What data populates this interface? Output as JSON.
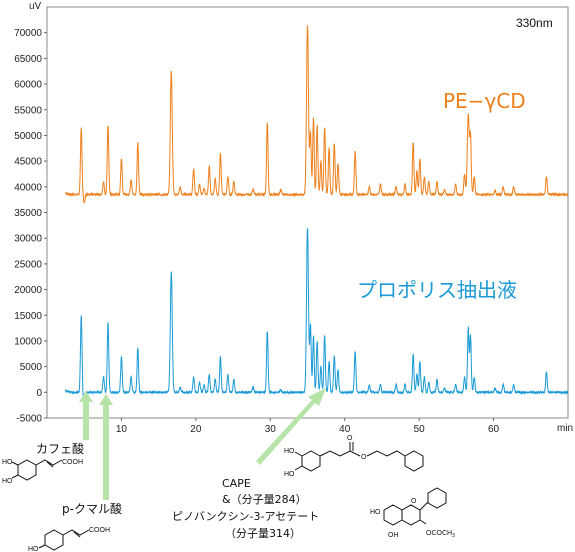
{
  "chart_data": {
    "type": "line",
    "y_unit": "uV",
    "x_unit": "min",
    "wavelength": "330nm",
    "xlim": [
      0,
      70
    ],
    "ylim": [
      -5000,
      75000
    ],
    "x_ticks": [
      10,
      20,
      30,
      40,
      50,
      60
    ],
    "y_ticks": [
      -5000,
      0,
      5000,
      10000,
      15000,
      20000,
      25000,
      30000,
      35000,
      40000,
      45000,
      50000,
      55000,
      60000,
      65000,
      70000
    ],
    "grid": false,
    "series": [
      {
        "name": "PE−γCD",
        "color": "#ee7f1b",
        "baseline": 38500,
        "peaks": [
          [
            4.6,
            13000
          ],
          [
            5.0,
            -1500
          ],
          [
            7.6,
            2500
          ],
          [
            8.2,
            13500
          ],
          [
            10.0,
            7000
          ],
          [
            11.3,
            3000
          ],
          [
            12.2,
            10000
          ],
          [
            16.7,
            24000
          ],
          [
            17.9,
            1500
          ],
          [
            19.7,
            5000
          ],
          [
            20.5,
            2000
          ],
          [
            21.1,
            1200
          ],
          [
            21.8,
            5500
          ],
          [
            22.6,
            3000
          ],
          [
            23.3,
            8000
          ],
          [
            24.3,
            3500
          ],
          [
            25.1,
            2500
          ],
          [
            27.7,
            1000
          ],
          [
            29.6,
            14000
          ],
          [
            31.4,
            1000
          ],
          [
            35.0,
            33000
          ],
          [
            35.4,
            12000
          ],
          [
            35.8,
            15000
          ],
          [
            36.3,
            13500
          ],
          [
            36.8,
            6500
          ],
          [
            37.3,
            13000
          ],
          [
            37.9,
            9000
          ],
          [
            38.6,
            10000
          ],
          [
            39.1,
            6000
          ],
          [
            41.4,
            8500
          ],
          [
            43.3,
            1500
          ],
          [
            44.8,
            2000
          ],
          [
            46.9,
            1500
          ],
          [
            48.1,
            2000
          ],
          [
            49.2,
            10000
          ],
          [
            49.7,
            4500
          ],
          [
            50.1,
            7000
          ],
          [
            50.7,
            3500
          ],
          [
            51.3,
            2500
          ],
          [
            52.4,
            2500
          ],
          [
            53.4,
            1000
          ],
          [
            54.9,
            2000
          ],
          [
            56.1,
            4000
          ],
          [
            56.6,
            15500
          ],
          [
            56.9,
            11000
          ],
          [
            57.4,
            3500
          ],
          [
            60.2,
            800
          ],
          [
            61.3,
            1500
          ],
          [
            62.7,
            1500
          ],
          [
            67.1,
            3500
          ]
        ]
      },
      {
        "name": "プロポリス抽出液",
        "color": "#1a9ad6",
        "baseline": 0,
        "peaks": [
          [
            4.6,
            15000
          ],
          [
            5.0,
            -3500
          ],
          [
            7.6,
            3000
          ],
          [
            8.2,
            13500
          ],
          [
            10.0,
            7000
          ],
          [
            11.3,
            3000
          ],
          [
            12.2,
            8500
          ],
          [
            16.7,
            23500
          ],
          [
            17.9,
            1000
          ],
          [
            19.7,
            3000
          ],
          [
            20.5,
            2000
          ],
          [
            21.1,
            1500
          ],
          [
            21.8,
            3500
          ],
          [
            22.6,
            2500
          ],
          [
            23.3,
            7000
          ],
          [
            24.3,
            3500
          ],
          [
            25.1,
            2500
          ],
          [
            27.7,
            1000
          ],
          [
            29.6,
            12000
          ],
          [
            31.4,
            500
          ],
          [
            35.0,
            32000
          ],
          [
            35.4,
            13000
          ],
          [
            35.8,
            11000
          ],
          [
            36.3,
            10000
          ],
          [
            36.8,
            5000
          ],
          [
            37.3,
            11000
          ],
          [
            37.9,
            6000
          ],
          [
            38.6,
            7000
          ],
          [
            39.1,
            4500
          ],
          [
            41.4,
            8000
          ],
          [
            43.3,
            1500
          ],
          [
            44.8,
            1500
          ],
          [
            46.9,
            1500
          ],
          [
            48.1,
            1500
          ],
          [
            49.2,
            7500
          ],
          [
            49.7,
            3500
          ],
          [
            50.1,
            6000
          ],
          [
            50.7,
            3000
          ],
          [
            51.3,
            2000
          ],
          [
            52.4,
            2500
          ],
          [
            53.4,
            800
          ],
          [
            54.9,
            1500
          ],
          [
            56.1,
            3000
          ],
          [
            56.6,
            12500
          ],
          [
            56.9,
            11000
          ],
          [
            57.4,
            3000
          ],
          [
            60.2,
            800
          ],
          [
            61.3,
            1500
          ],
          [
            62.7,
            1500
          ],
          [
            67.1,
            4000
          ]
        ]
      }
    ],
    "annotations": [
      {
        "text": "カフェ酸",
        "target_x": 7.9
      },
      {
        "text": "p-クマル酸",
        "target_x": 9.5
      },
      {
        "text": "CAPE",
        "target_x": 37.0
      },
      {
        "text": "&（分子量284）"
      },
      {
        "text": "ピノバンクシン-3-アセテート"
      },
      {
        "text": "（分子量314）"
      }
    ]
  },
  "structure_labels": {
    "caffeic_cooh": "COOH",
    "coumaric_cooh": "COOH",
    "ho": "HO",
    "oh": "OH",
    "o": "O",
    "ococh3": "OCOCH",
    "sub3": "3"
  }
}
